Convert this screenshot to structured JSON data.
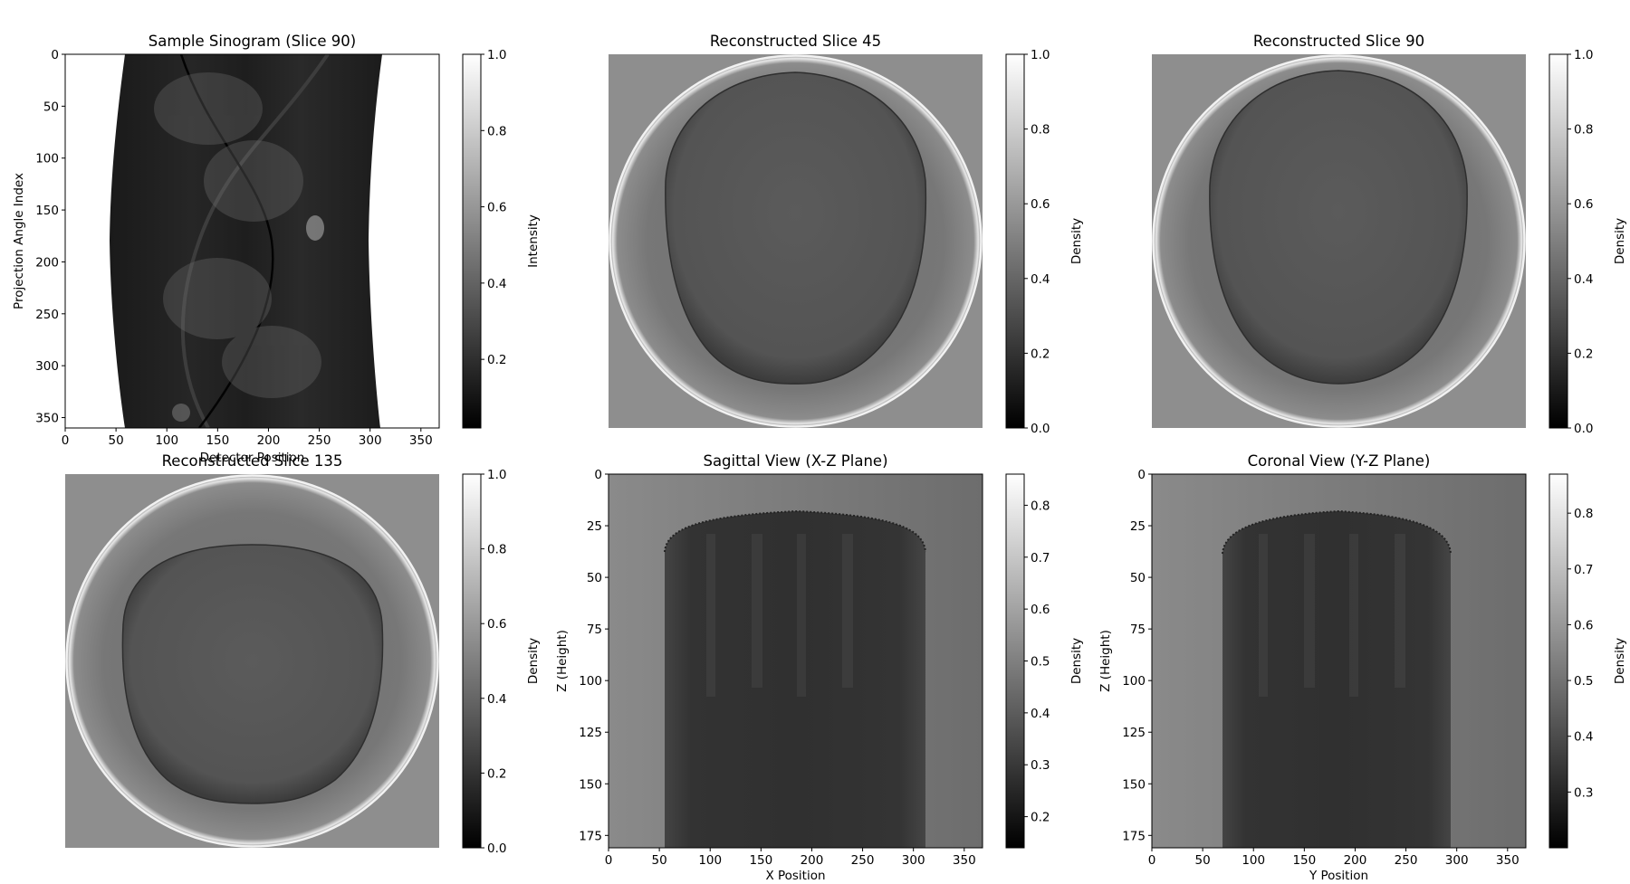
{
  "chart_data": [
    {
      "type": "heatmap",
      "title": "Sample Sinogram (Slice 90)",
      "xlabel": "Detector Position",
      "ylabel": "Projection Angle Index",
      "xticks": [
        "0",
        "50",
        "100",
        "150",
        "200",
        "250",
        "300",
        "350"
      ],
      "yticks": [
        "0",
        "50",
        "100",
        "150",
        "200",
        "250",
        "300",
        "350"
      ],
      "xlim": [
        0,
        368
      ],
      "ylim": [
        360,
        0
      ],
      "colormap": "gray",
      "colorbar": {
        "label": "Intensity",
        "range": [
          0.02,
          1.0
        ],
        "ticks": [
          "0.2",
          "0.4",
          "0.6",
          "0.8",
          "1.0"
        ]
      }
    },
    {
      "type": "heatmap",
      "title": "Reconstructed Slice 45",
      "colormap": "gray",
      "axes_visible": false,
      "colorbar": {
        "label": "Density",
        "range": [
          0.0,
          1.0
        ],
        "ticks": [
          "0.0",
          "0.2",
          "0.4",
          "0.6",
          "0.8",
          "1.0"
        ]
      }
    },
    {
      "type": "heatmap",
      "title": "Reconstructed Slice 90",
      "colormap": "gray",
      "axes_visible": false,
      "colorbar": {
        "label": "Density",
        "range": [
          0.0,
          1.0
        ],
        "ticks": [
          "0.0",
          "0.2",
          "0.4",
          "0.6",
          "0.8",
          "1.0"
        ]
      }
    },
    {
      "type": "heatmap",
      "title": "Reconstructed Slice 135",
      "colormap": "gray",
      "axes_visible": false,
      "colorbar": {
        "label": "Density",
        "range": [
          0.0,
          1.0
        ],
        "ticks": [
          "0.0",
          "0.2",
          "0.4",
          "0.6",
          "0.8",
          "1.0"
        ]
      }
    },
    {
      "type": "heatmap",
      "title": "Sagittal View (X-Z Plane)",
      "xlabel": "X Position",
      "ylabel": "Z (Height)",
      "xticks": [
        "0",
        "50",
        "100",
        "150",
        "200",
        "250",
        "300",
        "350"
      ],
      "yticks": [
        "0",
        "25",
        "50",
        "75",
        "100",
        "125",
        "150",
        "175"
      ],
      "xlim": [
        0,
        368
      ],
      "ylim": [
        181,
        0
      ],
      "colormap": "gray",
      "colorbar": {
        "label": "Density",
        "range": [
          0.14,
          0.86
        ],
        "ticks": [
          "0.2",
          "0.3",
          "0.4",
          "0.5",
          "0.6",
          "0.7",
          "0.8"
        ]
      }
    },
    {
      "type": "heatmap",
      "title": "Coronal View (Y-Z Plane)",
      "xlabel": "Y Position",
      "ylabel": "Z (Height)",
      "xticks": [
        "0",
        "50",
        "100",
        "150",
        "200",
        "250",
        "300",
        "350"
      ],
      "yticks": [
        "0",
        "25",
        "50",
        "75",
        "100",
        "125",
        "150",
        "175"
      ],
      "xlim": [
        0,
        368
      ],
      "ylim": [
        181,
        0
      ],
      "colormap": "gray",
      "colorbar": {
        "label": "Density",
        "range": [
          0.2,
          0.87
        ],
        "ticks": [
          "0.3",
          "0.4",
          "0.5",
          "0.6",
          "0.7",
          "0.8"
        ]
      }
    }
  ]
}
